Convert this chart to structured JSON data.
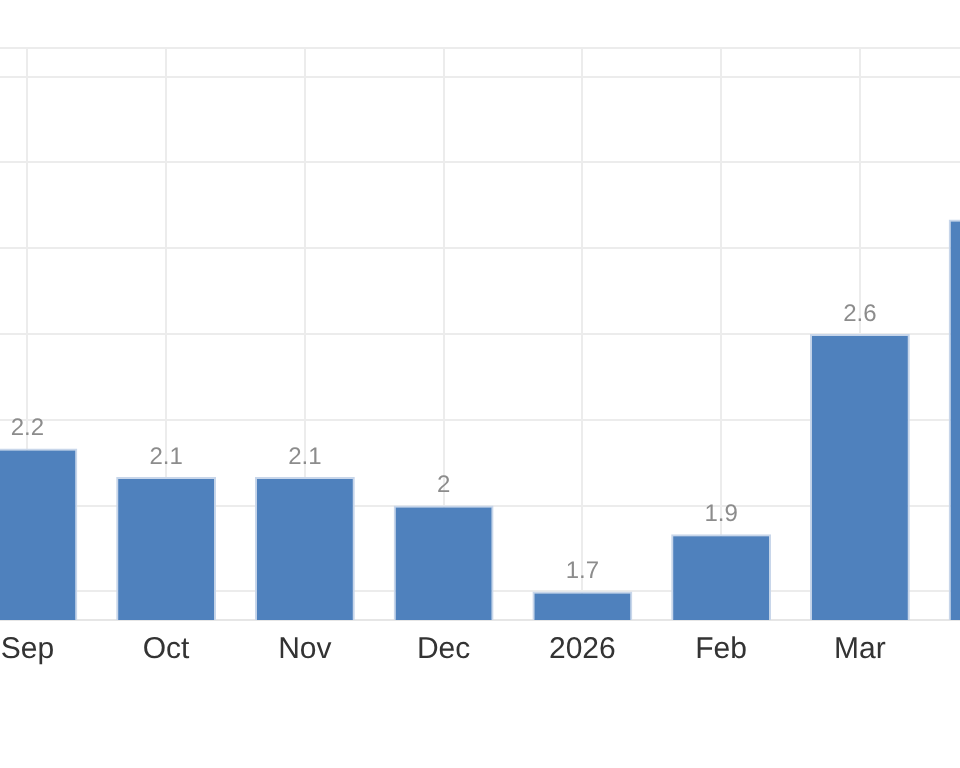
{
  "chart_data": {
    "type": "bar",
    "categories": [
      "Sep",
      "Oct",
      "Nov",
      "Dec",
      "2026",
      "Feb",
      "Mar",
      null
    ],
    "values": [
      2.2,
      2.1,
      2.1,
      2.0,
      1.7,
      1.9,
      2.6,
      3.0
    ],
    "value_labels": [
      "2.2",
      "2.1",
      "2.1",
      "2",
      "1.7",
      "1.9",
      "2.6",
      null
    ],
    "color": "#4f81bd",
    "ylim": [
      1.6,
      3.6
    ],
    "yticks": [
      {
        "value": 1.7,
        "label": null
      },
      {
        "value": 2.0,
        "label": null
      },
      {
        "value": 2.3,
        "label": null
      },
      {
        "value": 2.6,
        "label": null
      },
      {
        "value": 2.9,
        "label": null
      },
      {
        "value": 3.2,
        "label": null
      },
      {
        "value": 3.5,
        "label": null
      },
      {
        "value": 3.6,
        "label": null
      }
    ],
    "tick_labels": "x",
    "grid": true
  }
}
